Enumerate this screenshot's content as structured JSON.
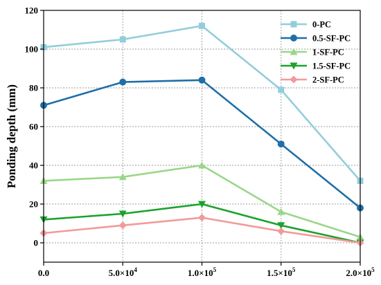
{
  "chart_data": {
    "type": "line",
    "x": [
      0,
      50000,
      100000,
      150000,
      200000
    ],
    "x_tick_labels": [
      "0.0",
      "5.0×10",
      "1.0×10",
      "1.5×10",
      "2.0×10"
    ],
    "x_tick_exponents": [
      "",
      "4",
      "5",
      "5",
      "5"
    ],
    "xlim": [
      0,
      200000
    ],
    "ylabel": "Ponding depth (mm)",
    "xlabel": "",
    "ylim": [
      -10,
      120
    ],
    "y_ticks": [
      0,
      20,
      40,
      60,
      80,
      100,
      120
    ],
    "y_tick_labels": [
      "0",
      "20",
      "40",
      "60",
      "80",
      "100",
      "120"
    ],
    "grid": true,
    "legend_position": "top-right",
    "series": [
      {
        "name": "0-PC",
        "color": "#92cddc",
        "marker": "square",
        "values": [
          101,
          105,
          112,
          79,
          32
        ]
      },
      {
        "name": "0.5-SF-PC",
        "color": "#1f6fa8",
        "marker": "circle",
        "values": [
          71,
          83,
          84,
          51,
          18
        ]
      },
      {
        "name": "1-SF-PC",
        "color": "#9ad68a",
        "marker": "triangle-up",
        "values": [
          32,
          34,
          40,
          16,
          3
        ]
      },
      {
        "name": "1.5-SF-PC",
        "color": "#1ba22c",
        "marker": "triangle-down",
        "values": [
          12,
          15,
          20,
          9,
          0
        ]
      },
      {
        "name": "2-SF-PC",
        "color": "#f29a9a",
        "marker": "diamond",
        "values": [
          5,
          9,
          13,
          6,
          0
        ]
      }
    ]
  }
}
